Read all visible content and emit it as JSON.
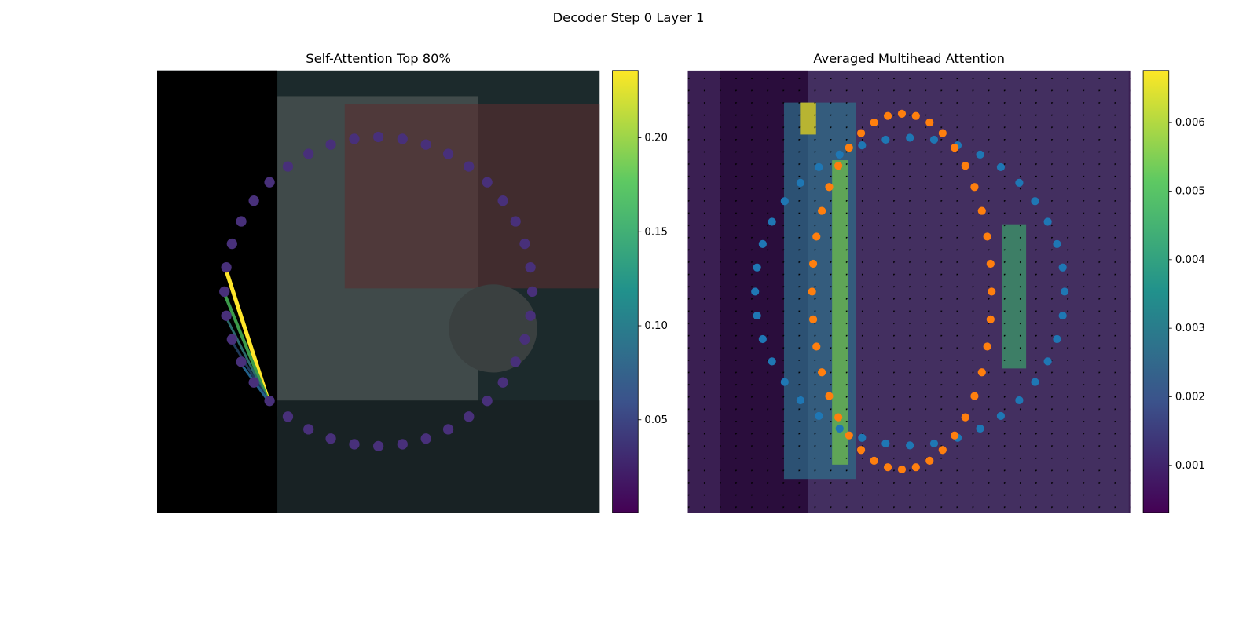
{
  "chart_data": [
    {
      "type": "image",
      "suptitle": "Decoder Step 0 Layer 1",
      "title": "Self-Attention Top 80%",
      "clim": [
        0.0006,
        0.2358
      ],
      "cticks": [
        0.05,
        {
          "value": 0.1,
          "label": "0.10"
        },
        0.15,
        {
          "value": 0.2,
          "label": "0.20"
        }
      ]
    },
    {
      "type": "image",
      "title": "Averaged Multihead Attention",
      "clim": [
        0.00031,
        0.00676
      ],
      "cticks": [
        0.001,
        0.002,
        0.003,
        0.004,
        0.005,
        0.006
      ]
    }
  ]
}
